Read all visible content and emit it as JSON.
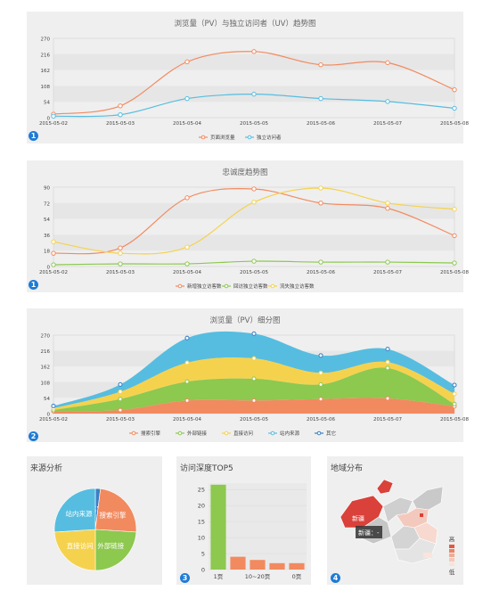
{
  "chart_data": [
    {
      "type": "line",
      "title": "浏览量（PV）与独立访问者（UV）趋势图",
      "x": [
        "2015-05-02",
        "2015-05-03",
        "2015-05-04",
        "2015-05-05",
        "2015-05-06",
        "2015-05-07",
        "2015-05-08"
      ],
      "yticks": [
        0,
        54,
        108,
        162,
        216,
        270
      ],
      "ylim": [
        0,
        270
      ],
      "series": [
        {
          "name": "页面浏览量",
          "color": "#f28a5f",
          "values": [
            12,
            40,
            190,
            225,
            180,
            187,
            95
          ]
        },
        {
          "name": "独立访问者",
          "color": "#56bde0",
          "values": [
            5,
            10,
            65,
            80,
            65,
            55,
            32
          ]
        }
      ],
      "badge": "1"
    },
    {
      "type": "line",
      "title": "忠诚度趋势图",
      "x": [
        "2015-05-02",
        "2015-05-03",
        "2015-05-04",
        "2015-05-05",
        "2015-05-06",
        "2015-05-07",
        "2015-05-08"
      ],
      "yticks": [
        0,
        18,
        36,
        54,
        72,
        90
      ],
      "ylim": [
        0,
        90
      ],
      "series": [
        {
          "name": "新增独立访客数",
          "color": "#f28a5f",
          "values": [
            15,
            21,
            78,
            88,
            72,
            66,
            35
          ]
        },
        {
          "name": "回访独立访客数",
          "color": "#8dc84f",
          "values": [
            2,
            3,
            3,
            6,
            5,
            5,
            4
          ]
        },
        {
          "name": "流失独立访客数",
          "color": "#f5d24e",
          "values": [
            28,
            15,
            22,
            73,
            89,
            72,
            65
          ]
        }
      ],
      "badge": "1"
    },
    {
      "type": "area",
      "title": "浏览量（PV）细分图",
      "x": [
        "2015-05-02",
        "2015-05-03",
        "2015-05-04",
        "2015-05-05",
        "2015-05-06",
        "2015-05-07",
        "2015-05-08"
      ],
      "yticks": [
        0,
        54,
        108,
        162,
        216,
        270
      ],
      "ytick_labels": [
        "0",
        "54",
        "108",
        "162",
        "216",
        "270"
      ],
      "ylim": [
        0,
        270
      ],
      "stacked": true,
      "series": [
        {
          "name": "搜索引擎",
          "color": "#f28a5f",
          "values": [
            8,
            12,
            45,
            45,
            50,
            52,
            25
          ]
        },
        {
          "name": "外部链接",
          "color": "#8dc84f",
          "values": [
            4,
            38,
            65,
            75,
            50,
            105,
            8
          ]
        },
        {
          "name": "直接访问",
          "color": "#f5d24e",
          "values": [
            6,
            25,
            65,
            70,
            40,
            20,
            35
          ]
        },
        {
          "name": "站内来源",
          "color": "#56bde0",
          "values": [
            8,
            25,
            85,
            85,
            60,
            45,
            30
          ]
        },
        {
          "name": "其它",
          "color": "#3b7fc4",
          "values": [
            0,
            0,
            0,
            0,
            0,
            0,
            0
          ]
        }
      ],
      "badge": "2"
    },
    {
      "type": "pie",
      "title": "来源分析",
      "labels": [
        "其它",
        "搜索引擎",
        "外部链接",
        "直接访问",
        "站内来源"
      ],
      "values": [
        2,
        24,
        24,
        24,
        26
      ],
      "colors": [
        "#3b7fc4",
        "#f28a5f",
        "#8dc84f",
        "#f5d24e",
        "#56bde0"
      ]
    },
    {
      "type": "bar",
      "title": "访问深度TOP5",
      "categories": [
        "1页",
        "",
        "10~20页",
        "",
        "0页"
      ],
      "values": [
        26.5,
        4,
        3,
        2,
        2
      ],
      "colors": [
        "#8dc84f",
        "#f28a5f",
        "#f28a5f",
        "#f28a5f",
        "#f28a5f"
      ],
      "yticks": [
        0,
        5,
        10,
        15,
        20,
        25
      ],
      "ylim": [
        0,
        27
      ],
      "badge": "3"
    },
    {
      "type": "map",
      "title": "地域分布",
      "tooltip": "新疆：-",
      "highlight_label": "新疆",
      "legend_high": "高",
      "legend_low": "低",
      "badge": "4"
    }
  ]
}
